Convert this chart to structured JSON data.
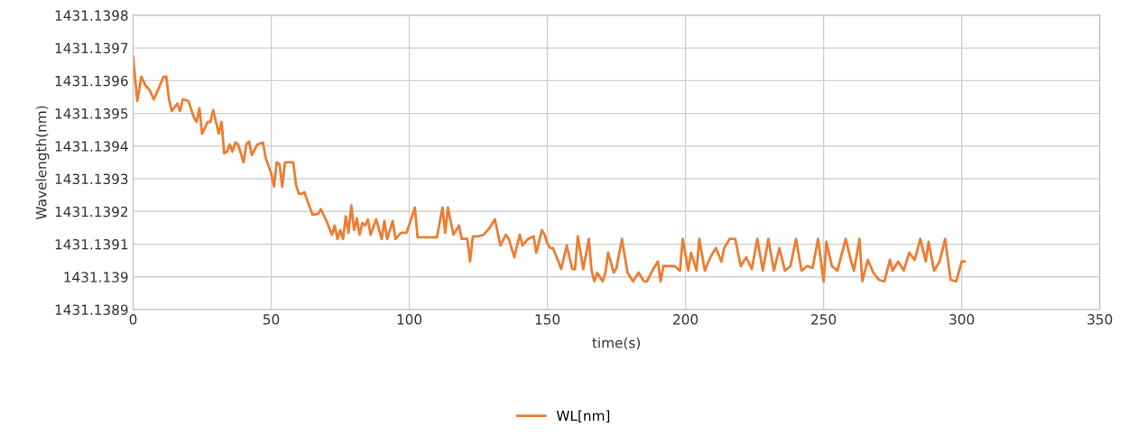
{
  "chart_data": {
    "type": "line",
    "xlabel": "time(s)",
    "ylabel": "Wavelength(nm)",
    "xlim": [
      0,
      350
    ],
    "xticks": [
      0,
      50,
      100,
      150,
      200,
      250,
      300,
      350
    ],
    "ylim": [
      1431.1389,
      1431.1398
    ],
    "yticks": [
      1431.1389,
      1431.139,
      1431.1391,
      1431.1392,
      1431.1393,
      1431.1394,
      1431.1395,
      1431.1396,
      1431.1397,
      1431.1398
    ],
    "grid": true,
    "legend": "bottom",
    "marker": "none",
    "line_style": "solid",
    "series": [
      {
        "name": "WL[nm]",
        "color": "#ed7d31",
        "x": [
          0,
          1.5,
          3,
          4.5,
          6,
          7.5,
          9,
          11,
          12,
          13,
          14,
          16,
          17,
          18,
          20,
          22,
          23,
          24,
          25,
          27,
          28,
          29,
          30,
          31,
          32,
          33,
          34,
          35,
          36,
          37,
          38,
          39,
          40,
          41,
          42,
          43,
          45,
          47,
          48,
          50,
          51,
          52,
          53,
          54,
          55,
          56,
          58,
          59,
          60,
          61,
          62,
          64,
          65,
          67,
          68,
          70,
          72,
          73,
          74,
          75,
          76,
          77,
          78,
          79,
          80,
          81,
          82,
          83,
          84,
          85,
          86,
          88,
          90,
          91,
          92,
          94,
          95,
          97,
          99,
          101,
          102,
          103,
          110,
          112,
          113,
          114,
          116,
          118,
          119,
          121,
          122,
          123,
          125,
          127,
          129,
          131,
          133,
          135,
          136,
          138,
          140,
          141,
          143,
          145,
          146,
          148,
          149,
          150,
          151,
          152,
          154,
          155,
          157,
          159,
          160,
          161,
          163,
          165,
          166,
          167,
          168,
          170,
          171,
          172,
          174,
          175,
          177,
          179,
          181,
          183,
          185,
          186,
          188,
          190,
          191,
          192,
          194,
          196,
          198,
          199,
          201,
          202,
          204,
          205,
          207,
          209,
          211,
          213,
          214,
          216,
          218,
          220,
          222,
          224,
          226,
          228,
          230,
          232,
          234,
          236,
          238,
          240,
          242,
          244,
          246,
          248,
          250,
          251,
          253,
          255,
          258,
          260,
          261,
          263,
          264,
          266,
          268,
          270,
          272,
          274,
          275,
          277,
          279,
          281,
          283,
          285,
          287,
          288,
          290,
          292,
          294,
          296,
          298,
          300,
          301
        ],
        "values": [
          1431.139673,
          1431.139538,
          1431.139612,
          1431.139585,
          1431.139571,
          1431.139543,
          1431.139571,
          1431.139612,
          1431.139612,
          1431.139543,
          1431.139507,
          1431.13953,
          1431.139507,
          1431.139543,
          1431.139538,
          1431.139488,
          1431.139474,
          1431.139516,
          1431.139438,
          1431.139474,
          1431.139474,
          1431.13951,
          1431.139474,
          1431.139438,
          1431.139474,
          1431.139378,
          1431.139383,
          1431.139405,
          1431.139383,
          1431.139411,
          1431.139405,
          1431.139378,
          1431.13935,
          1431.139405,
          1431.139414,
          1431.139372,
          1431.139405,
          1431.139411,
          1431.139364,
          1431.139317,
          1431.139276,
          1431.13935,
          1431.139345,
          1431.139276,
          1431.13935,
          1431.13935,
          1431.13935,
          1431.139281,
          1431.139254,
          1431.139254,
          1431.139259,
          1431.139212,
          1431.13919,
          1431.139193,
          1431.139207,
          1431.139171,
          1431.139129,
          1431.139157,
          1431.139116,
          1431.139143,
          1431.139116,
          1431.139185,
          1431.139135,
          1431.139218,
          1431.139143,
          1431.139179,
          1431.139129,
          1431.139165,
          1431.139157,
          1431.139176,
          1431.139129,
          1431.139176,
          1431.139116,
          1431.139171,
          1431.139116,
          1431.139171,
          1431.139116,
          1431.139135,
          1431.139135,
          1431.139185,
          1431.139212,
          1431.139121,
          1431.139121,
          1431.139212,
          1431.139135,
          1431.139212,
          1431.139129,
          1431.139157,
          1431.139116,
          1431.139116,
          1431.139047,
          1431.139124,
          1431.139124,
          1431.139129,
          1431.139149,
          1431.139176,
          1431.139096,
          1431.139129,
          1431.139116,
          1431.13906,
          1431.139129,
          1431.139096,
          1431.139116,
          1431.139124,
          1431.139074,
          1431.139143,
          1431.139129,
          1431.139102,
          1431.139088,
          1431.139088,
          1431.139047,
          1431.139024,
          1431.139096,
          1431.139024,
          1431.139024,
          1431.139124,
          1431.139024,
          1431.139116,
          1431.139019,
          1431.138986,
          1431.139013,
          1431.138986,
          1431.139013,
          1431.139074,
          1431.139013,
          1431.139027,
          1431.139116,
          1431.139013,
          1431.138986,
          1431.139013,
          1431.138986,
          1431.138986,
          1431.139019,
          1431.139047,
          1431.138986,
          1431.139033,
          1431.139033,
          1431.139033,
          1431.139019,
          1431.139116,
          1431.139019,
          1431.139074,
          1431.139019,
          1431.139116,
          1431.139019,
          1431.13906,
          1431.139088,
          1431.139047,
          1431.139088,
          1431.139116,
          1431.139116,
          1431.139033,
          1431.13906,
          1431.139024,
          1431.139116,
          1431.139019,
          1431.139116,
          1431.139019,
          1431.139088,
          1431.139019,
          1431.139033,
          1431.139116,
          1431.139019,
          1431.139033,
          1431.139027,
          1431.139116,
          1431.138986,
          1431.139107,
          1431.139033,
          1431.139019,
          1431.139116,
          1431.139047,
          1431.139019,
          1431.139116,
          1431.138986,
          1431.139052,
          1431.139013,
          1431.138991,
          1431.138986,
          1431.139052,
          1431.139019,
          1431.139047,
          1431.139019,
          1431.139074,
          1431.139052,
          1431.139116,
          1431.139047,
          1431.139107,
          1431.139019,
          1431.139047,
          1431.139116,
          1431.138991,
          1431.138986,
          1431.139047,
          1431.139047
        ]
      }
    ]
  }
}
